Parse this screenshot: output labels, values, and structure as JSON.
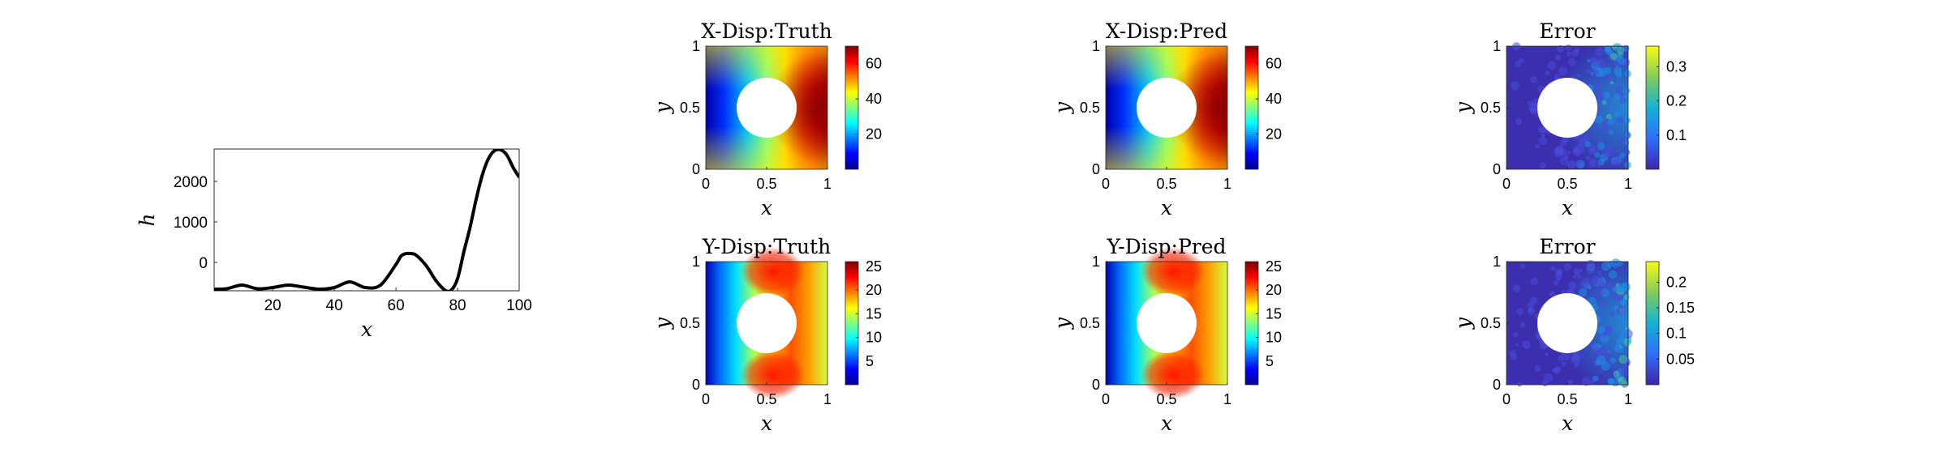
{
  "chart_data": [
    {
      "type": "line",
      "title": "",
      "xlabel": "x",
      "ylabel": "h",
      "xlim": [
        1,
        100
      ],
      "ylim": [
        -700,
        2800
      ],
      "xticks": [
        20,
        40,
        60,
        80,
        100
      ],
      "yticks": [
        0,
        1000,
        2000
      ],
      "grid": false,
      "series": [
        {
          "color": "#000000",
          "x": [
            1,
            5,
            10,
            15,
            20,
            25,
            30,
            35,
            40,
            45,
            50,
            55,
            60,
            62,
            65,
            67,
            70,
            73,
            76,
            78,
            80,
            82,
            84,
            86,
            88,
            90,
            92,
            94,
            96,
            98,
            100
          ],
          "y": [
            -660,
            -650,
            -560,
            -650,
            -620,
            -560,
            -610,
            -660,
            -620,
            -480,
            -620,
            -560,
            -50,
            180,
            220,
            150,
            -100,
            -450,
            -690,
            -680,
            -400,
            250,
            850,
            1550,
            2150,
            2560,
            2760,
            2780,
            2650,
            2350,
            2100
          ]
        }
      ]
    },
    {
      "type": "heatmap",
      "title": "X-Disp:Truth",
      "xlabel": "x",
      "ylabel": "y",
      "xlim": [
        0,
        1
      ],
      "ylim": [
        0,
        1
      ],
      "xticks": [
        "0",
        "0.5",
        "1"
      ],
      "yticks": [
        "0",
        "0.5",
        "1"
      ],
      "colormap": "jet",
      "colorbar": {
        "min": 0,
        "max": 70,
        "ticks": [
          "20",
          "40",
          "60"
        ]
      }
    },
    {
      "type": "heatmap",
      "title": "X-Disp:Pred",
      "xlabel": "x",
      "ylabel": "y",
      "xlim": [
        0,
        1
      ],
      "ylim": [
        0,
        1
      ],
      "xticks": [
        "0",
        "0.5",
        "1"
      ],
      "yticks": [
        "0",
        "0.5",
        "1"
      ],
      "colormap": "jet",
      "colorbar": {
        "min": 0,
        "max": 70,
        "ticks": [
          "20",
          "40",
          "60"
        ]
      }
    },
    {
      "type": "heatmap",
      "title": "Error",
      "xlabel": "x",
      "ylabel": "y",
      "xlim": [
        0,
        1
      ],
      "ylim": [
        0,
        1
      ],
      "xticks": [
        "0",
        "0.5",
        "1"
      ],
      "yticks": [
        "0",
        "0.5",
        "1"
      ],
      "colormap": "parula",
      "colorbar": {
        "min": 0,
        "max": 0.36,
        "ticks": [
          "0.1",
          "0.2",
          "0.3"
        ]
      }
    },
    {
      "type": "heatmap",
      "title": "Y-Disp:Truth",
      "xlabel": "x",
      "ylabel": "y",
      "xlim": [
        0,
        1
      ],
      "ylim": [
        0,
        1
      ],
      "xticks": [
        "0",
        "0.5",
        "1"
      ],
      "yticks": [
        "0",
        "0.5",
        "1"
      ],
      "colormap": "jet",
      "colorbar": {
        "min": 0,
        "max": 26,
        "ticks": [
          "5",
          "10",
          "15",
          "20",
          "25"
        ]
      }
    },
    {
      "type": "heatmap",
      "title": "Y-Disp:Pred",
      "xlabel": "x",
      "ylabel": "y",
      "xlim": [
        0,
        1
      ],
      "ylim": [
        0,
        1
      ],
      "xticks": [
        "0",
        "0.5",
        "1"
      ],
      "yticks": [
        "0",
        "0.5",
        "1"
      ],
      "colormap": "jet",
      "colorbar": {
        "min": 0,
        "max": 26,
        "ticks": [
          "5",
          "10",
          "15",
          "20",
          "25"
        ]
      }
    },
    {
      "type": "heatmap",
      "title": "Error",
      "xlabel": "x",
      "ylabel": "y",
      "xlim": [
        0,
        1
      ],
      "ylim": [
        0,
        1
      ],
      "xticks": [
        "0",
        "0.5",
        "1"
      ],
      "yticks": [
        "0",
        "0.5",
        "1"
      ],
      "colormap": "parula",
      "colorbar": {
        "min": 0,
        "max": 0.24,
        "ticks": [
          "0.05",
          "0.1",
          "0.15",
          "0.2"
        ]
      }
    }
  ]
}
